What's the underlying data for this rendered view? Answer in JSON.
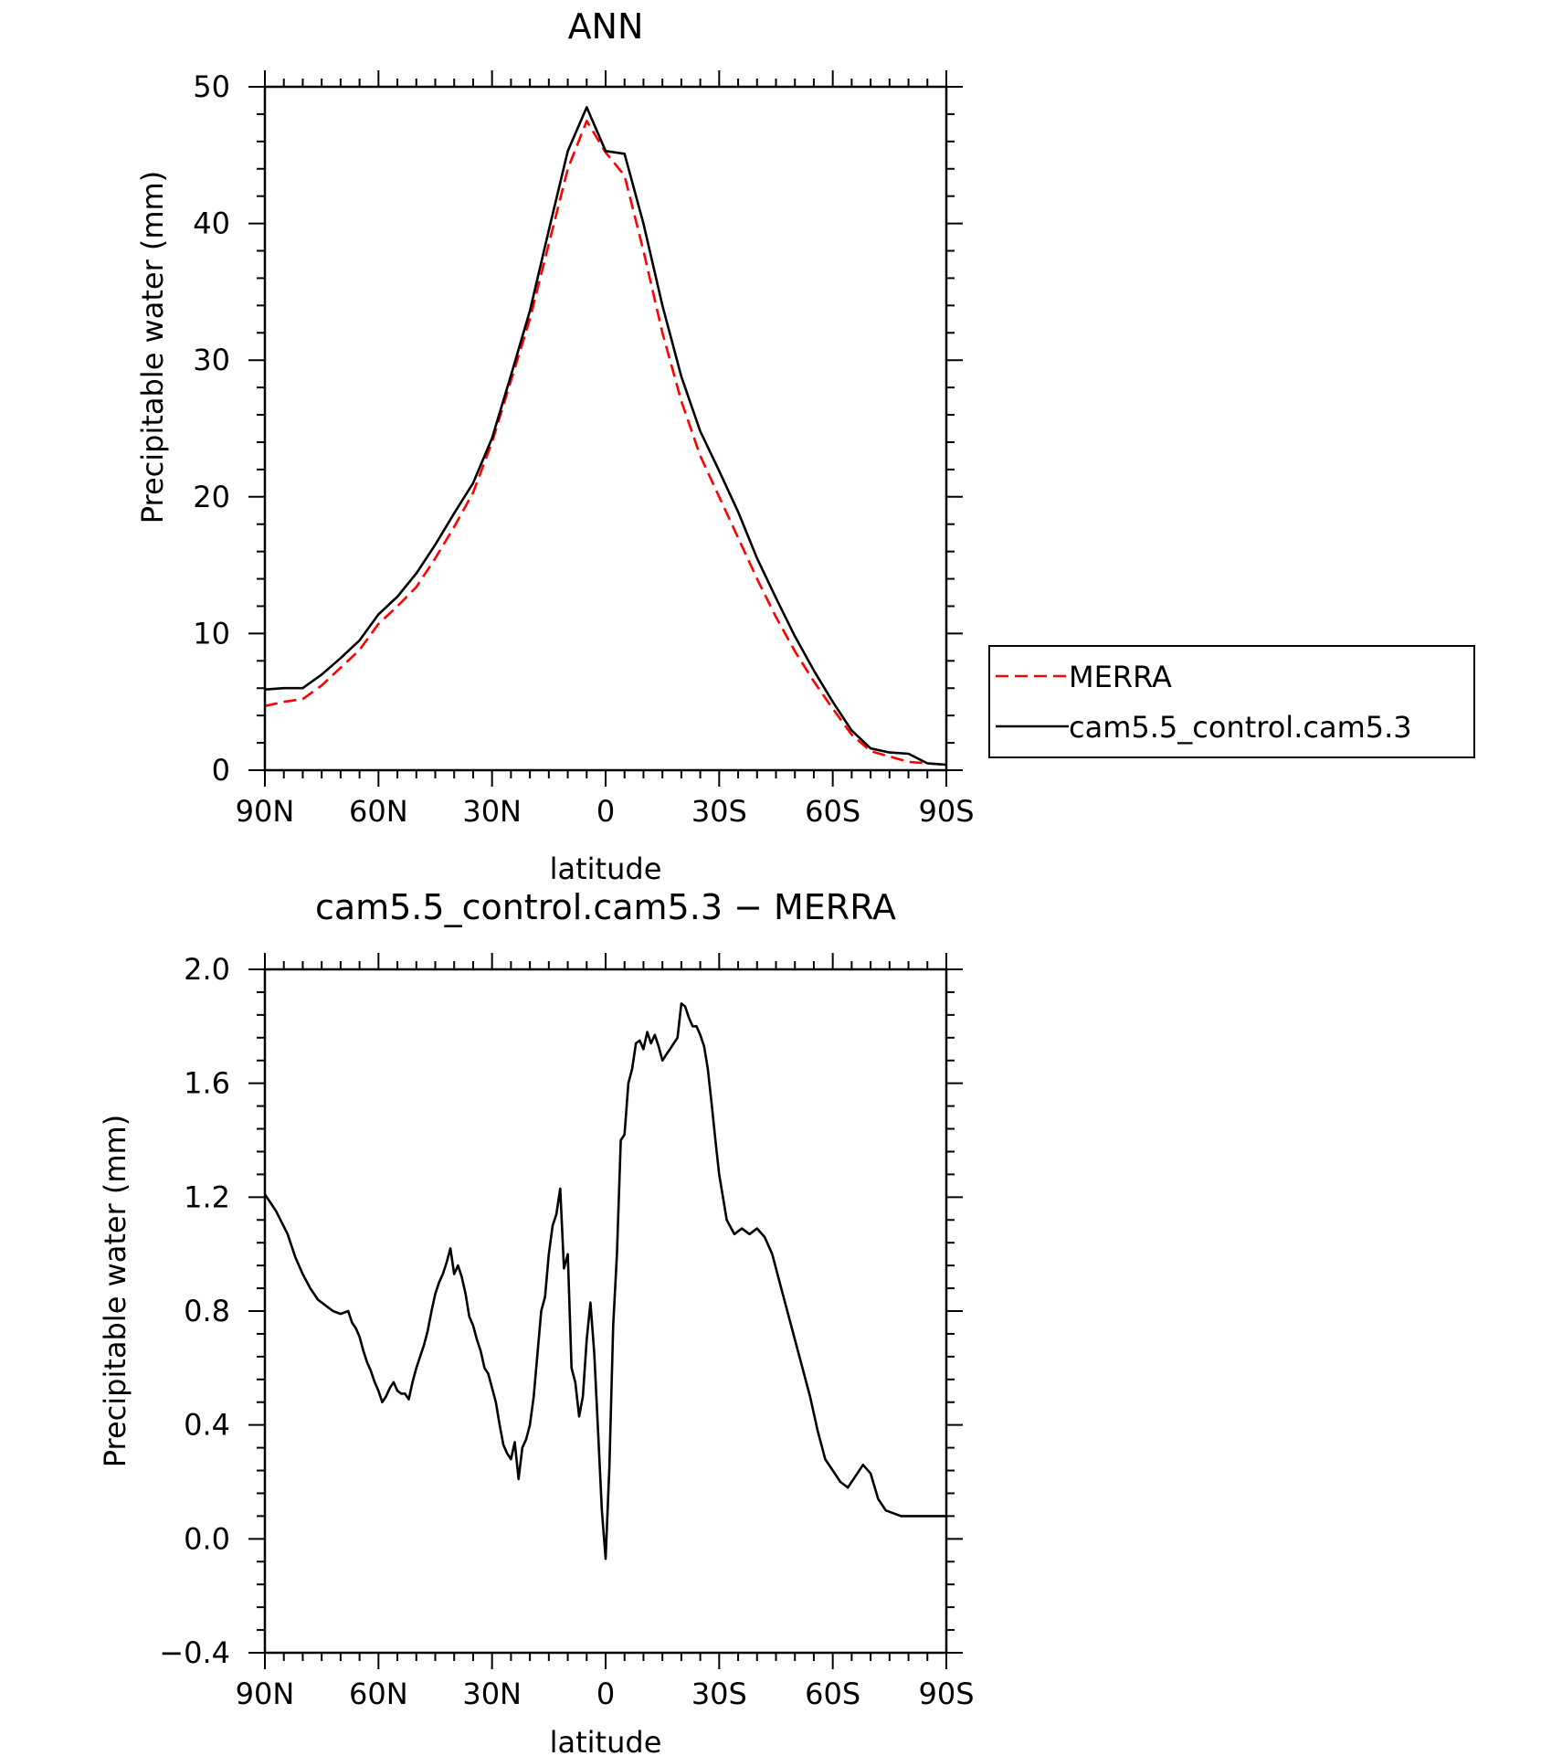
{
  "colors": {
    "merra": "#ff0000",
    "model": "#000000",
    "axis": "#000000",
    "background": "#ffffff"
  },
  "chart_data": [
    {
      "type": "line",
      "title": "ANN",
      "xlabel": "latitude",
      "ylabel": "Precipitable water (mm)",
      "xlim": [
        90,
        -90
      ],
      "ylim": [
        0,
        50
      ],
      "x_ticks": [
        90,
        60,
        30,
        0,
        -30,
        -60,
        -90
      ],
      "x_tick_labels": [
        "90N",
        "60N",
        "30N",
        "0",
        "30S",
        "60S",
        "90S"
      ],
      "y_ticks": [
        0,
        10,
        20,
        30,
        40,
        50
      ],
      "y_tick_labels": [
        "0",
        "10",
        "20",
        "30",
        "40",
        "50"
      ],
      "grid": false,
      "legend_position": "right",
      "series": [
        {
          "name": "MERRA",
          "style": "dashed",
          "color": "#ff0000",
          "x": [
            90,
            85,
            80,
            75,
            70,
            65,
            60,
            55,
            50,
            45,
            40,
            35,
            30,
            25,
            20,
            15,
            10,
            5,
            0,
            -5,
            -10,
            -15,
            -20,
            -25,
            -30,
            -35,
            -40,
            -45,
            -50,
            -55,
            -60,
            -65,
            -70,
            -75,
            -80,
            -85,
            -90
          ],
          "values": [
            4.7,
            5.0,
            5.2,
            6.2,
            7.5,
            8.8,
            10.7,
            12.0,
            13.4,
            15.5,
            17.8,
            20.3,
            24.0,
            28.5,
            33.0,
            38.5,
            44.0,
            47.5,
            45.2,
            43.5,
            38.0,
            32.0,
            27.0,
            23.0,
            20.0,
            17.0,
            14.0,
            11.2,
            8.7,
            6.5,
            4.5,
            2.6,
            1.4,
            1.0,
            0.6,
            0.5,
            0.4
          ]
        },
        {
          "name": "cam5.5_control.cam5.3",
          "style": "solid",
          "color": "#000000",
          "x": [
            90,
            85,
            80,
            75,
            70,
            65,
            60,
            55,
            50,
            45,
            40,
            35,
            30,
            25,
            20,
            15,
            10,
            5,
            0,
            -5,
            -10,
            -15,
            -20,
            -25,
            -30,
            -35,
            -40,
            -45,
            -50,
            -55,
            -60,
            -65,
            -70,
            -75,
            -80,
            -85,
            -90
          ],
          "values": [
            5.9,
            6.0,
            6.0,
            7.0,
            8.2,
            9.5,
            11.4,
            12.7,
            14.4,
            16.5,
            18.8,
            21.0,
            24.3,
            28.9,
            33.6,
            39.5,
            45.3,
            48.5,
            45.3,
            45.1,
            40.0,
            34.0,
            28.8,
            24.8,
            21.9,
            18.9,
            15.5,
            12.6,
            9.8,
            7.3,
            5.0,
            2.9,
            1.6,
            1.3,
            1.2,
            0.5,
            0.4
          ]
        }
      ]
    },
    {
      "type": "line",
      "title": "cam5.5_control.cam5.3 − MERRA",
      "xlabel": "latitude",
      "ylabel": "Precipitable water (mm)",
      "xlim": [
        90,
        -90
      ],
      "ylim": [
        -0.4,
        2.0
      ],
      "x_ticks": [
        90,
        60,
        30,
        0,
        -30,
        -60,
        -90
      ],
      "x_tick_labels": [
        "90N",
        "60N",
        "30N",
        "0",
        "30S",
        "60S",
        "90S"
      ],
      "y_ticks": [
        -0.4,
        0.0,
        0.4,
        0.8,
        1.2,
        1.6,
        2.0
      ],
      "y_tick_labels": [
        "−0.4",
        "0.0",
        "0.4",
        "0.8",
        "1.2",
        "1.6",
        "2.0"
      ],
      "grid": false,
      "series": [
        {
          "style": "solid",
          "color": "#000000",
          "x": [
            90,
            87,
            84,
            82,
            80,
            78,
            76,
            74,
            72,
            70,
            68,
            67,
            66,
            65,
            64,
            63,
            62,
            61,
            60,
            59,
            58,
            57,
            56,
            55,
            54,
            53,
            52,
            51,
            50,
            49,
            48,
            47,
            46,
            45,
            44,
            43,
            42,
            41,
            40,
            39,
            38,
            37,
            36,
            35,
            34,
            33,
            32,
            31,
            30,
            29,
            28,
            27,
            26,
            25,
            24,
            23,
            22,
            21,
            20,
            19,
            18,
            17,
            16,
            15,
            14,
            13,
            12,
            11,
            10,
            9,
            8,
            7,
            6,
            5,
            4,
            3,
            2,
            1,
            0,
            -1,
            -2,
            -3,
            -4,
            -5,
            -6,
            -7,
            -8,
            -9,
            -10,
            -11,
            -12,
            -13,
            -14,
            -15,
            -16,
            -17,
            -18,
            -19,
            -20,
            -21,
            -22,
            -23,
            -24,
            -25,
            -26,
            -27,
            -28,
            -29,
            -30,
            -32,
            -34,
            -36,
            -38,
            -40,
            -42,
            -44,
            -46,
            -48,
            -50,
            -52,
            -54,
            -56,
            -58,
            -60,
            -62,
            -64,
            -66,
            -68,
            -70,
            -72,
            -74,
            -76,
            -78,
            -80,
            -82,
            -84,
            -86,
            -88,
            -90
          ],
          "values": [
            1.21,
            1.15,
            1.07,
            0.99,
            0.93,
            0.88,
            0.84,
            0.82,
            0.8,
            0.79,
            0.8,
            0.76,
            0.74,
            0.71,
            0.66,
            0.62,
            0.59,
            0.55,
            0.52,
            0.48,
            0.5,
            0.53,
            0.55,
            0.52,
            0.51,
            0.51,
            0.49,
            0.55,
            0.6,
            0.64,
            0.68,
            0.73,
            0.8,
            0.86,
            0.9,
            0.93,
            0.97,
            1.02,
            0.93,
            0.96,
            0.92,
            0.86,
            0.78,
            0.75,
            0.7,
            0.66,
            0.6,
            0.58,
            0.53,
            0.48,
            0.4,
            0.33,
            0.3,
            0.28,
            0.34,
            0.21,
            0.32,
            0.35,
            0.4,
            0.5,
            0.65,
            0.8,
            0.85,
            1.0,
            1.1,
            1.14,
            1.23,
            0.95,
            1.0,
            0.6,
            0.55,
            0.43,
            0.5,
            0.7,
            0.83,
            0.65,
            0.38,
            0.1,
            -0.07,
            0.25,
            0.75,
            1.0,
            1.4,
            1.42,
            1.6,
            1.65,
            1.74,
            1.75,
            1.72,
            1.78,
            1.74,
            1.77,
            1.73,
            1.68,
            1.7,
            1.72,
            1.74,
            1.76,
            1.88,
            1.87,
            1.83,
            1.8,
            1.8,
            1.77,
            1.73,
            1.65,
            1.53,
            1.4,
            1.28,
            1.12,
            1.07,
            1.09,
            1.07,
            1.09,
            1.06,
            1.0,
            0.9,
            0.8,
            0.7,
            0.6,
            0.5,
            0.38,
            0.28,
            0.24,
            0.2,
            0.18,
            0.22,
            0.26,
            0.23,
            0.14,
            0.1,
            0.09,
            0.08,
            0.08,
            0.08,
            0.08,
            0.08,
            0.08,
            0.08
          ]
        }
      ]
    }
  ]
}
